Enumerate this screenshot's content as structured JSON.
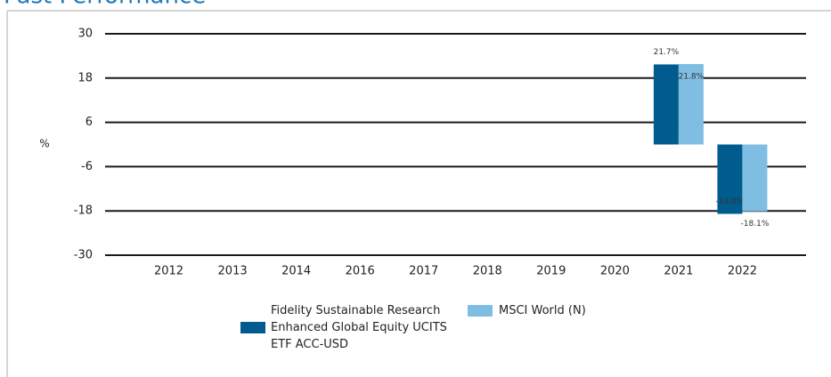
{
  "chart_data": {
    "type": "bar",
    "title": "Past Performance",
    "ylabel": "%",
    "categories": [
      "2012",
      "2013",
      "2014",
      "2016",
      "2017",
      "2018",
      "2019",
      "2020",
      "2021",
      "2022"
    ],
    "series": [
      {
        "name": "Fidelity Sustainable Research Enhanced Global Equity UCITS ETF ACC-USD",
        "color": "#005c8f",
        "values": [
          null,
          null,
          null,
          null,
          null,
          null,
          null,
          null,
          21.7,
          -18.8
        ],
        "value_labels": [
          null,
          null,
          null,
          null,
          null,
          null,
          null,
          null,
          "21.7%",
          "-18.8%"
        ]
      },
      {
        "name": "MSCI World (N)",
        "color": "#80bde3",
        "values": [
          null,
          null,
          null,
          null,
          null,
          null,
          null,
          null,
          21.8,
          -18.1
        ],
        "value_labels": [
          null,
          null,
          null,
          null,
          null,
          null,
          null,
          null,
          "21.8%",
          "-18.1%"
        ]
      }
    ],
    "ylim": [
      -30,
      30
    ],
    "yticks": [
      -30,
      -18,
      -6,
      6,
      18,
      30
    ],
    "grid": true
  }
}
